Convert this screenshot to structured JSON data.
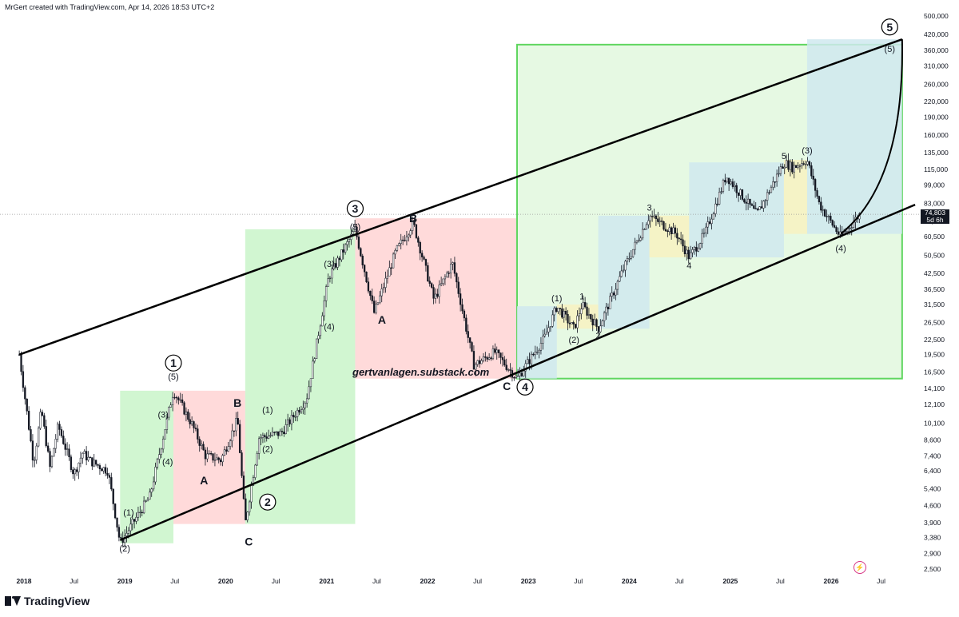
{
  "header": {
    "credit": "MrGert created with TradingView.com, Apr 14, 2026 18:53 UTC+2"
  },
  "footer": {
    "brand": "TradingView"
  },
  "watermark": "gertvanlagen.substack.com",
  "last_price": {
    "value": "74,803",
    "countdown": "5d 6h"
  },
  "colors": {
    "impulse_box": "#ccf5cc",
    "correction_box": "#ffd6d6",
    "wave_box_blue": "#cfe9ee",
    "wave_box_yellow": "#f6f2c2",
    "outline_green": "#5fd65f",
    "candle": "#131722",
    "channel": "#000000"
  },
  "chart_data": {
    "type": "candlestick",
    "title": "",
    "y_scale": "log",
    "y_ticks": [
      "500,000",
      "420,000",
      "360,000",
      "310,000",
      "260,000",
      "220,000",
      "190,000",
      "160,000",
      "135,000",
      "115,000",
      "99,000",
      "83,000",
      "70,000",
      "60,500",
      "50,500",
      "42,500",
      "36,500",
      "31,500",
      "26,500",
      "22,500",
      "19,500",
      "16,500",
      "14,100",
      "12,100",
      "10,100",
      "8,600",
      "7,400",
      "6,400",
      "5,400",
      "4,600",
      "3,900",
      "3,380",
      "2,900",
      "2,500"
    ],
    "x_ticks": [
      "2018",
      "Jul",
      "2019",
      "Jul",
      "2020",
      "Jul",
      "2021",
      "Jul",
      "2022",
      "Jul",
      "2023",
      "Jul",
      "2024",
      "Jul",
      "2025",
      "Jul",
      "2026",
      "Jul"
    ],
    "price_path": [
      [
        "2017-12-15",
        19500
      ],
      [
        "2018-02-05",
        6900
      ],
      [
        "2018-03-05",
        11500
      ],
      [
        "2018-04-05",
        6600
      ],
      [
        "2018-05-05",
        9900
      ],
      [
        "2018-07-01",
        6200
      ],
      [
        "2018-08-01",
        7600
      ],
      [
        "2018-09-01",
        7000
      ],
      [
        "2018-11-01",
        6400
      ],
      [
        "2018-12-15",
        3200
      ],
      [
        "2019-04-01",
        5000
      ],
      [
        "2019-06-26",
        13800
      ],
      [
        "2019-09-01",
        10000
      ],
      [
        "2019-10-20",
        7400
      ],
      [
        "2019-12-15",
        7100
      ],
      [
        "2020-02-13",
        10500
      ],
      [
        "2020-03-12",
        3850
      ],
      [
        "2020-05-01",
        8800
      ],
      [
        "2020-07-20",
        9200
      ],
      [
        "2020-10-20",
        12800
      ],
      [
        "2021-01-08",
        41000
      ],
      [
        "2021-04-14",
        64800
      ],
      [
        "2021-06-22",
        29000
      ],
      [
        "2021-09-07",
        52000
      ],
      [
        "2021-11-10",
        69000
      ],
      [
        "2022-01-24",
        33000
      ],
      [
        "2022-04-01",
        47000
      ],
      [
        "2022-06-18",
        17600
      ],
      [
        "2022-09-01",
        20000
      ],
      [
        "2022-11-21",
        15500
      ],
      [
        "2023-03-01",
        23000
      ],
      [
        "2023-04-14",
        31000
      ],
      [
        "2023-06-15",
        25000
      ],
      [
        "2023-07-14",
        31500
      ],
      [
        "2023-09-11",
        25000
      ],
      [
        "2023-12-10",
        44000
      ],
      [
        "2024-03-14",
        73800
      ],
      [
        "2024-06-20",
        62000
      ],
      [
        "2024-08-05",
        49500
      ],
      [
        "2024-10-01",
        62000
      ],
      [
        "2024-12-17",
        108000
      ],
      [
        "2025-04-07",
        74500
      ],
      [
        "2025-07-14",
        123000
      ],
      [
        "2025-08-15",
        117000
      ],
      [
        "2025-10-06",
        126000
      ],
      [
        "2025-11-20",
        82000
      ],
      [
        "2026-02-05",
        60000
      ],
      [
        "2026-04-14",
        74803
      ]
    ],
    "projection": [
      [
        "2026-02-05",
        62000
      ],
      [
        "2026-06-01",
        110000
      ],
      [
        "2026-09-15",
        400000
      ]
    ],
    "channel_lines": [
      {
        "start": [
          "2017-12-15",
          19500
        ],
        "end": [
          "2026-09-15",
          400000
        ]
      },
      {
        "start": [
          "2018-12-15",
          3300
        ],
        "end": [
          "2026-11-01",
          82000
        ]
      }
    ],
    "boxes": [
      {
        "kind": "impulse",
        "x1": "2018-12-15",
        "x2": "2019-06-26",
        "y1": 3200,
        "y2": 13800
      },
      {
        "kind": "correction",
        "x1": "2019-06-26",
        "x2": "2020-03-12",
        "y1": 3850,
        "y2": 13800
      },
      {
        "kind": "impulse",
        "x1": "2020-03-12",
        "x2": "2021-04-14",
        "y1": 3850,
        "y2": 64800
      },
      {
        "kind": "correction",
        "x1": "2021-04-14",
        "x2": "2022-11-21",
        "y1": 15500,
        "y2": 72000
      },
      {
        "kind": "outline",
        "x1": "2022-11-21",
        "x2": "2026-09-15",
        "y1": 15500,
        "y2": 380000
      },
      {
        "kind": "blue",
        "x1": "2022-11-21",
        "x2": "2023-04-14",
        "y1": 15500,
        "y2": 31000
      },
      {
        "kind": "yellow",
        "x1": "2023-04-14",
        "x2": "2023-09-11",
        "y1": 25000,
        "y2": 31500
      },
      {
        "kind": "blue",
        "x1": "2023-09-11",
        "x2": "2024-03-14",
        "y1": 25000,
        "y2": 73800
      },
      {
        "kind": "yellow",
        "x1": "2024-03-14",
        "x2": "2024-08-05",
        "y1": 49500,
        "y2": 73800
      },
      {
        "kind": "blue",
        "x1": "2024-08-05",
        "x2": "2025-07-14",
        "y1": 49500,
        "y2": 123000
      },
      {
        "kind": "yellow",
        "x1": "2025-07-14",
        "x2": "2025-10-06",
        "y1": 62000,
        "y2": 126000
      },
      {
        "kind": "blue",
        "x1": "2025-10-06",
        "x2": "2026-09-15",
        "y1": 62000,
        "y2": 400000
      }
    ],
    "annotations": [
      {
        "text": "1",
        "circled": true,
        "x": "2019-06-26",
        "y": 18000
      },
      {
        "text": "(5)",
        "x": "2019-06-26",
        "y": 15800
      },
      {
        "text": "(3)",
        "x": "2019-05-20",
        "y": 11000
      },
      {
        "text": "(4)",
        "x": "2019-06-05",
        "y": 7000
      },
      {
        "text": "(1)",
        "x": "2019-01-15",
        "y": 4300
      },
      {
        "text": "(2)",
        "x": "2019-01-01",
        "y": 3050
      },
      {
        "text": "B",
        "bold": true,
        "x": "2020-02-13",
        "y": 12200
      },
      {
        "text": "A",
        "bold": true,
        "x": "2019-10-15",
        "y": 5800
      },
      {
        "text": "C",
        "bold": true,
        "x": "2020-03-25",
        "y": 3230
      },
      {
        "text": "2",
        "circled": true,
        "x": "2020-06-01",
        "y": 4750
      },
      {
        "text": "(1)",
        "x": "2020-06-01",
        "y": 11500
      },
      {
        "text": "(2)",
        "x": "2020-06-01",
        "y": 7900
      },
      {
        "text": "(4)",
        "x": "2021-01-10",
        "y": 25500
      },
      {
        "text": "(3)",
        "x": "2021-01-10",
        "y": 46500
      },
      {
        "text": "(5)",
        "x": "2021-04-14",
        "y": 66500
      },
      {
        "text": "3",
        "circled": true,
        "x": "2021-04-14",
        "y": 79000
      },
      {
        "text": "A",
        "bold": true,
        "x": "2021-07-20",
        "y": 27000
      },
      {
        "text": "B",
        "bold": true,
        "x": "2021-11-10",
        "y": 71500
      },
      {
        "text": "C",
        "bold": true,
        "x": "2022-10-15",
        "y": 14300
      },
      {
        "text": "4",
        "circled": true,
        "x": "2022-12-20",
        "y": 14300
      },
      {
        "text": "(1)",
        "x": "2023-04-14",
        "y": 33500
      },
      {
        "text": "1",
        "x": "2023-07-14",
        "y": 34200
      },
      {
        "text": "(2)",
        "x": "2023-06-15",
        "y": 22500
      },
      {
        "text": "2",
        "x": "2023-09-11",
        "y": 23500
      },
      {
        "text": "3",
        "x": "2024-03-14",
        "y": 80000
      },
      {
        "text": "4",
        "x": "2024-08-05",
        "y": 45800
      },
      {
        "text": "5",
        "x": "2025-07-14",
        "y": 131000
      },
      {
        "text": "(3)",
        "x": "2025-10-06",
        "y": 138000
      },
      {
        "text": "(4)",
        "x": "2026-02-05",
        "y": 54000
      },
      {
        "text": "(5)",
        "x": "2026-08-01",
        "y": 365000
      },
      {
        "text": "5",
        "circled": true,
        "x": "2026-08-01",
        "y": 450000
      }
    ]
  }
}
